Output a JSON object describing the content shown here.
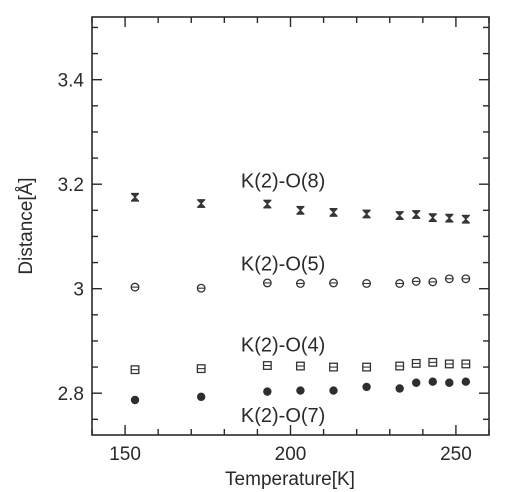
{
  "chart_data": {
    "type": "scatter",
    "title": "",
    "xlabel": "Temperature[K]",
    "ylabel": "Distance[Å]",
    "xlim": [
      140,
      260
    ],
    "ylim": [
      2.72,
      3.52
    ],
    "x_ticks": [
      150,
      200,
      250
    ],
    "x_tick_labels": [
      "150",
      "200",
      "250"
    ],
    "y_ticks": [
      2.8,
      3.0,
      3.2,
      3.4
    ],
    "y_tick_labels": [
      "2.8",
      "3",
      "3.2",
      "3.4"
    ],
    "grid": false,
    "legend": "none",
    "series": [
      {
        "name": "K(2)-O(8)",
        "marker": "hourglass",
        "x": [
          153,
          173,
          193,
          203,
          213,
          223,
          233,
          238,
          243,
          248,
          253
        ],
        "y": [
          3.175,
          3.163,
          3.162,
          3.15,
          3.146,
          3.143,
          3.14,
          3.142,
          3.136,
          3.135,
          3.133
        ]
      },
      {
        "name": "K(2)-O(5)",
        "marker": "circle-line",
        "x": [
          153,
          173,
          193,
          203,
          213,
          223,
          233,
          238,
          243,
          248,
          253
        ],
        "y": [
          3.003,
          3.001,
          3.011,
          3.01,
          3.011,
          3.01,
          3.01,
          3.014,
          3.013,
          3.019,
          3.019
        ]
      },
      {
        "name": "K(2)-O(4)",
        "marker": "square-line",
        "x": [
          153,
          173,
          193,
          203,
          213,
          223,
          233,
          238,
          243,
          248,
          253
        ],
        "y": [
          2.845,
          2.847,
          2.853,
          2.852,
          2.85,
          2.85,
          2.852,
          2.857,
          2.859,
          2.856,
          2.856
        ]
      },
      {
        "name": "K(2)-O(7)",
        "marker": "filled-circle",
        "x": [
          153,
          173,
          193,
          203,
          213,
          223,
          233,
          238,
          243,
          248,
          253
        ],
        "y": [
          2.787,
          2.793,
          2.803,
          2.805,
          2.805,
          2.812,
          2.809,
          2.82,
          2.822,
          2.82,
          2.822
        ]
      }
    ],
    "annotations": [
      {
        "text": "K(2)-O(8)",
        "x": 185,
        "y": 3.207
      },
      {
        "text": "K(2)-O(5)",
        "x": 185,
        "y": 3.048
      },
      {
        "text": "K(2)-O(4)",
        "x": 185,
        "y": 2.893
      },
      {
        "text": "K(2)-O(7)",
        "x": 185,
        "y": 2.758
      }
    ]
  }
}
